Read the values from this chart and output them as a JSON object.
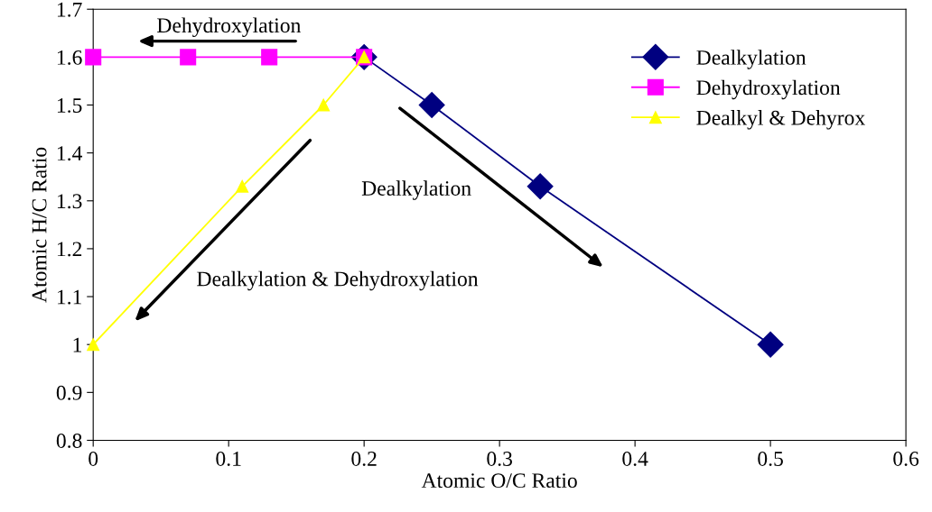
{
  "chart_data": {
    "type": "line",
    "xlabel": "Atomic O/C Ratio",
    "ylabel": "Atomic H/C Ratio",
    "xlim": [
      0,
      0.6
    ],
    "xticks": [
      0,
      0.1,
      0.2,
      0.3,
      0.4,
      0.5,
      0.6
    ],
    "ylim": [
      0.8,
      1.7
    ],
    "yticks": [
      0.8,
      0.9,
      1,
      1.1,
      1.2,
      1.3,
      1.4,
      1.5,
      1.6,
      1.7
    ],
    "grid": false,
    "legend": "top right",
    "series": [
      {
        "name": "Dealkylation",
        "color": "#000080",
        "marker": "diamond",
        "x": [
          0.2,
          0.25,
          0.33,
          0.5
        ],
        "values": [
          1.6,
          1.5,
          1.33,
          1.0
        ]
      },
      {
        "name": "Dehydroxylation",
        "color": "#ff00ff",
        "marker": "square",
        "x": [
          0,
          0.07,
          0.13,
          0.2
        ],
        "values": [
          1.6,
          1.6,
          1.6,
          1.6
        ]
      },
      {
        "name": "Dealkyl & Dehyrox",
        "color": "#ffff00",
        "marker": "triangle",
        "x": [
          0,
          0.11,
          0.17,
          0.2
        ],
        "values": [
          1.0,
          1.33,
          1.5,
          1.6
        ]
      }
    ],
    "annotations": [
      "Dehydroxylation",
      "Dealkylation",
      "Dealkylation & Dehydroxylation"
    ]
  }
}
